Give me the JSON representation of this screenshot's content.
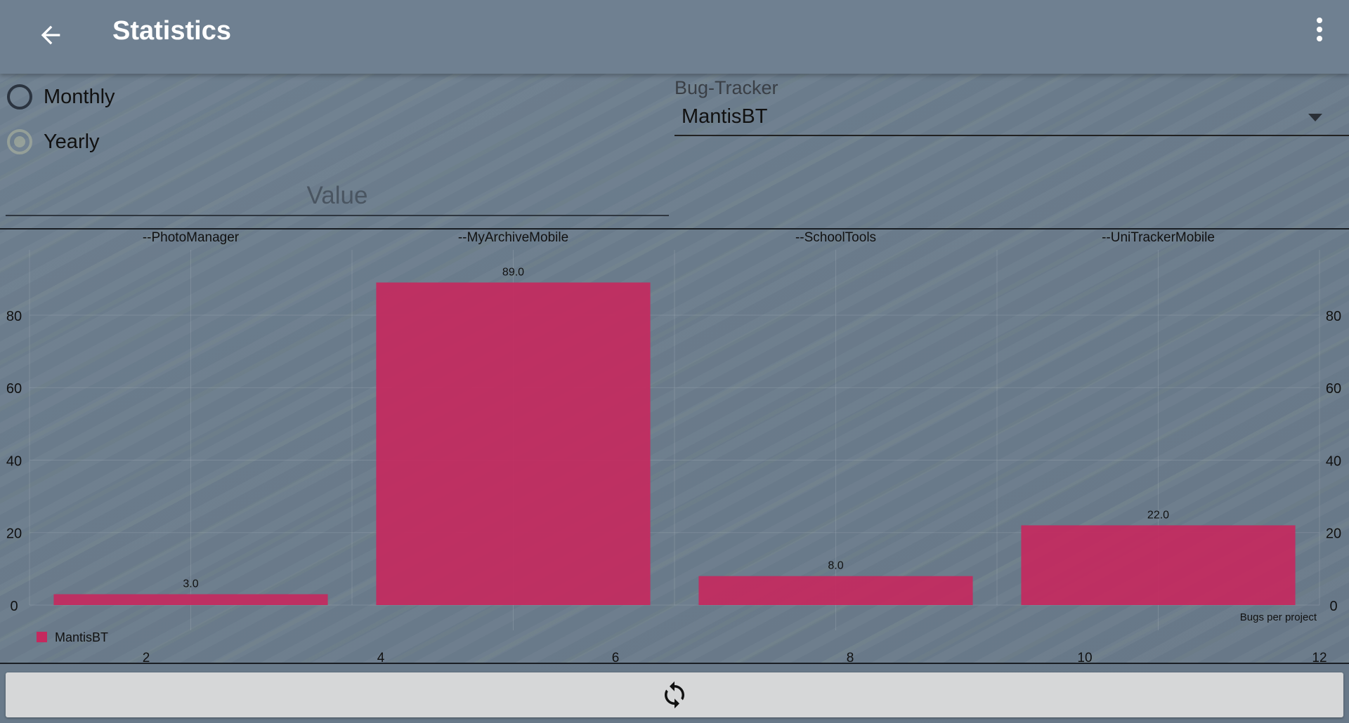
{
  "appbar": {
    "title": "Statistics",
    "back_icon": "arrow-back-icon",
    "menu_icon": "more-vert-icon"
  },
  "period": {
    "options": [
      {
        "label": "Monthly",
        "selected": false
      },
      {
        "label": "Yearly",
        "selected": true
      }
    ]
  },
  "bug_tracker": {
    "label": "Bug-Tracker",
    "selected": "MantisBT"
  },
  "value_field": {
    "placeholder": "Value"
  },
  "colors": {
    "bar": "#c4295e",
    "appbar": "#6f8091",
    "button_bg": "#d6d7d8"
  },
  "chart_data": {
    "type": "bar",
    "categories": [
      "--PhotoManager",
      "--MyArchiveMobile",
      "--SchoolTools",
      "--UniTrackerMobile"
    ],
    "series": [
      {
        "name": "MantisBT",
        "values": [
          3.0,
          89.0,
          8.0,
          22.0
        ]
      }
    ],
    "value_labels": [
      "3.0",
      "89.0",
      "8.0",
      "22.0"
    ],
    "ylim": [
      0,
      98
    ],
    "y_ticks": [
      "0",
      "20",
      "40",
      "60",
      "80"
    ],
    "x_ticks": [
      "2",
      "4",
      "6",
      "8",
      "10",
      "12"
    ],
    "description_label": "Bugs per project",
    "legend": {
      "position": "bottom-left",
      "entries": [
        "MantisBT"
      ]
    },
    "grid": true
  },
  "refresh_button": {
    "icon": "refresh-icon"
  }
}
